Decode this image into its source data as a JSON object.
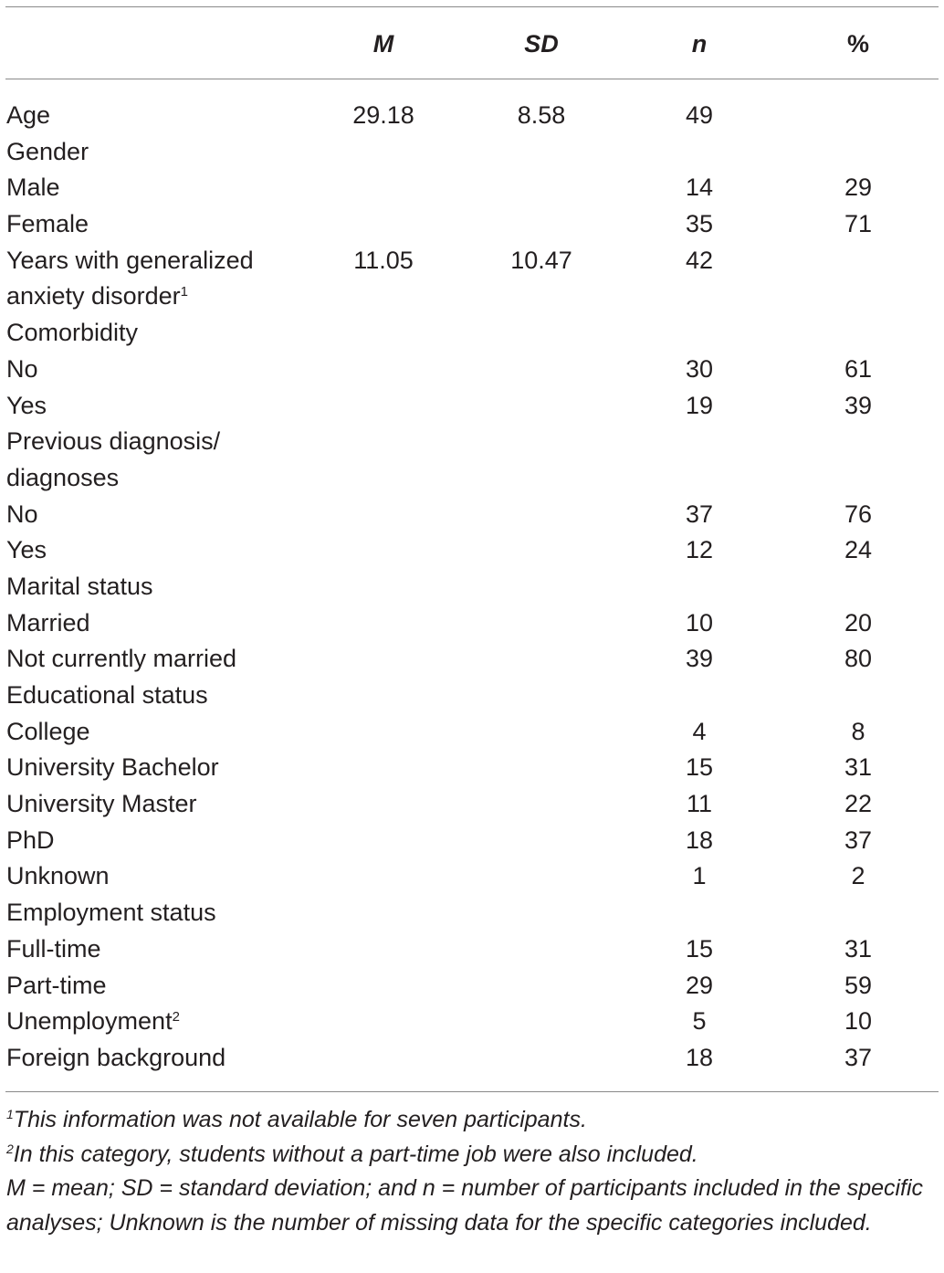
{
  "header": {
    "col_m": "M",
    "col_sd": "SD",
    "col_n": "n",
    "col_pct": "%"
  },
  "rows": [
    {
      "label": "Age",
      "m": "29.18",
      "sd": "8.58",
      "n": "49",
      "pct": ""
    },
    {
      "label": "Gender",
      "m": "",
      "sd": "",
      "n": "",
      "pct": ""
    },
    {
      "label": "Male",
      "m": "",
      "sd": "",
      "n": "14",
      "pct": "29"
    },
    {
      "label": "Female",
      "m": "",
      "sd": "",
      "n": "35",
      "pct": "71"
    },
    {
      "label": "Years with generalized anxiety disorder",
      "sup": "1",
      "m": "11.05",
      "sd": "10.47",
      "n": "42",
      "pct": ""
    },
    {
      "label": "Comorbidity",
      "m": "",
      "sd": "",
      "n": "",
      "pct": ""
    },
    {
      "label": "No",
      "m": "",
      "sd": "",
      "n": "30",
      "pct": "61"
    },
    {
      "label": "Yes",
      "m": "",
      "sd": "",
      "n": "19",
      "pct": "39"
    },
    {
      "label": "Previous diagnosis/ diagnoses",
      "m": "",
      "sd": "",
      "n": "",
      "pct": ""
    },
    {
      "label": "No",
      "m": "",
      "sd": "",
      "n": "37",
      "pct": "76"
    },
    {
      "label": "Yes",
      "m": "",
      "sd": "",
      "n": "12",
      "pct": "24"
    },
    {
      "label": "Marital status",
      "m": "",
      "sd": "",
      "n": "",
      "pct": ""
    },
    {
      "label": "Married",
      "m": "",
      "sd": "",
      "n": "10",
      "pct": "20"
    },
    {
      "label": "Not currently married",
      "m": "",
      "sd": "",
      "n": "39",
      "pct": "80"
    },
    {
      "label": "Educational status",
      "m": "",
      "sd": "",
      "n": "",
      "pct": ""
    },
    {
      "label": "College",
      "m": "",
      "sd": "",
      "n": "4",
      "pct": "8"
    },
    {
      "label": "University Bachelor",
      "m": "",
      "sd": "",
      "n": "15",
      "pct": "31"
    },
    {
      "label": "University Master",
      "m": "",
      "sd": "",
      "n": "11",
      "pct": "22"
    },
    {
      "label": "PhD",
      "m": "",
      "sd": "",
      "n": "18",
      "pct": "37"
    },
    {
      "label": "Unknown",
      "m": "",
      "sd": "",
      "n": "1",
      "pct": "2"
    },
    {
      "label": "Employment status",
      "m": "",
      "sd": "",
      "n": "",
      "pct": ""
    },
    {
      "label": "Full-time",
      "m": "",
      "sd": "",
      "n": "15",
      "pct": "31"
    },
    {
      "label": "Part-time",
      "m": "",
      "sd": "",
      "n": "29",
      "pct": "59"
    },
    {
      "label": "Unemployment",
      "sup": "2",
      "m": "",
      "sd": "",
      "n": "5",
      "pct": "10"
    },
    {
      "label": "Foreign background",
      "m": "",
      "sd": "",
      "n": "18",
      "pct": "37"
    }
  ],
  "footnotes": {
    "note1_mark": "1",
    "note1_text": "This information was not available for seven participants.",
    "note2_mark": "2",
    "note2_text": "In this category, students without a part-time job were also included.",
    "note3_text": "M = mean; SD = standard deviation; and n = number of participants included in the specific analyses; Unknown is the number of missing data for the specific categories included."
  }
}
